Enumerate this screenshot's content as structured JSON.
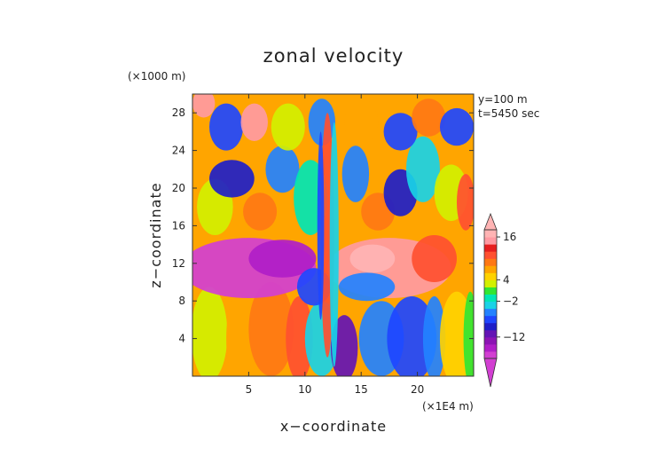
{
  "chart_data": {
    "type": "heatmap",
    "title": "zonal velocity",
    "xlabel": "x−coordinate",
    "ylabel": "z−coordinate",
    "x_unit": "(×1E4 m)",
    "y_unit": "(×1000 m)",
    "info_lines": [
      "y=100 m",
      "t=5450 sec"
    ],
    "xlim": [
      0,
      25
    ],
    "ylim": [
      0,
      30
    ],
    "x_ticks": [
      5,
      10,
      15,
      20
    ],
    "y_ticks": [
      4,
      8,
      12,
      16,
      20,
      24,
      28
    ],
    "colorbar": {
      "labels": [
        16,
        4,
        -2,
        -12
      ],
      "levels": [
        -16,
        -14,
        -12,
        -10,
        -8,
        -6,
        -4,
        -2,
        0,
        2,
        4,
        6,
        8,
        10,
        12,
        14,
        16,
        18
      ],
      "colors": [
        "#d23fd2",
        "#b01ec8",
        "#8c14b4",
        "#6414b4",
        "#1e1ec8",
        "#1e46ff",
        "#2382ff",
        "#19d2e6",
        "#00e6b4",
        "#32e632",
        "#d2f000",
        "#ffd200",
        "#ffa500",
        "#ff7814",
        "#ff5030",
        "#e61e1e",
        "#ff9aa2",
        "#ffb4b4"
      ]
    },
    "grid": false,
    "legend_position": "right"
  }
}
